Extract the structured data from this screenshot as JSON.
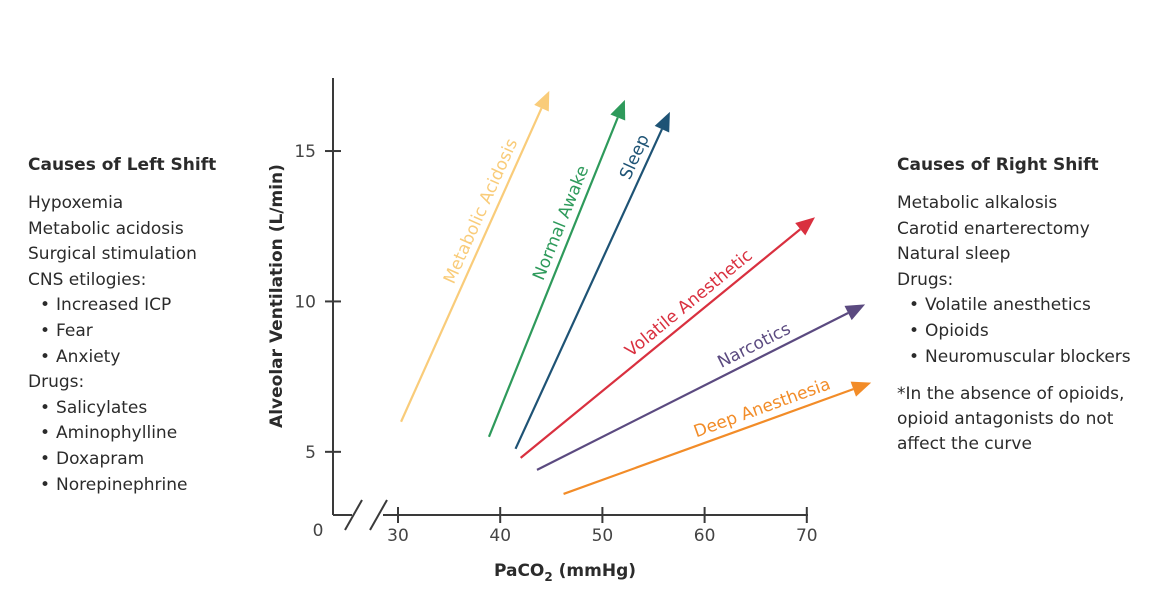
{
  "left_panel": {
    "title": "Causes of Left Shift",
    "items": [
      {
        "text": "Hypoxemia",
        "sub": false
      },
      {
        "text": "Metabolic acidosis",
        "sub": false
      },
      {
        "text": "Surgical stimulation",
        "sub": false
      },
      {
        "text": "CNS etilogies:",
        "sub": false
      },
      {
        "text": "Increased ICP",
        "sub": true
      },
      {
        "text": "Fear",
        "sub": true
      },
      {
        "text": "Anxiety",
        "sub": true
      },
      {
        "text": "Drugs:",
        "sub": false
      },
      {
        "text": "Salicylates",
        "sub": true
      },
      {
        "text": "Aminophylline",
        "sub": true
      },
      {
        "text": "Doxapram",
        "sub": true
      },
      {
        "text": "Norepinephrine",
        "sub": true
      }
    ]
  },
  "right_panel": {
    "title": "Causes of Right Shift",
    "items": [
      {
        "text": "Metabolic alkalosis",
        "sub": false
      },
      {
        "text": "Carotid enarterectomy",
        "sub": false
      },
      {
        "text": "Natural sleep",
        "sub": false
      },
      {
        "text": "Drugs:",
        "sub": false
      },
      {
        "text": "Volatile anesthetics",
        "sub": true
      },
      {
        "text": "Opioids",
        "sub": true
      },
      {
        "text": "Neuromuscular blockers",
        "sub": true
      }
    ],
    "footnote": "*In the absence of opioids,\n opioid antagonists do not\n affect the curve"
  },
  "chart_data": {
    "type": "line",
    "xlabel": "PaCO",
    "xlabel_sub": "2",
    "xlabel_unit": " (mmHg)",
    "ylabel": "Alveolar Ventilation (L/min)",
    "origin_label": "0",
    "x_ticks": [
      30,
      40,
      50,
      60,
      70
    ],
    "y_ticks": [
      5,
      10,
      15
    ],
    "xlim": [
      30,
      70
    ],
    "ylim": [
      2.9,
      15
    ],
    "axis_break": true,
    "series": [
      {
        "name": "Metabolic Acidosis",
        "color": "#F9CC7A",
        "x": [
          30.3,
          44.8
        ],
        "y": [
          6.0,
          17.0
        ]
      },
      {
        "name": "Normal Awake",
        "color": "#2E9A5B",
        "x": [
          38.9,
          52.2
        ],
        "y": [
          5.5,
          16.7
        ]
      },
      {
        "name": "Sleep",
        "color": "#1E5375",
        "x": [
          41.5,
          56.6
        ],
        "y": [
          5.1,
          16.3
        ]
      },
      {
        "name": "Volatile Anesthetic",
        "color": "#D9303F",
        "x": [
          42.0,
          70.8
        ],
        "y": [
          4.8,
          12.8
        ]
      },
      {
        "name": "Narcotics",
        "color": "#5B4A80",
        "x": [
          43.6,
          75.7
        ],
        "y": [
          4.4,
          9.9
        ]
      },
      {
        "name": "Deep Anesthesia",
        "color": "#F28C28",
        "x": [
          46.2,
          76.3
        ],
        "y": [
          3.6,
          7.3
        ]
      }
    ]
  }
}
